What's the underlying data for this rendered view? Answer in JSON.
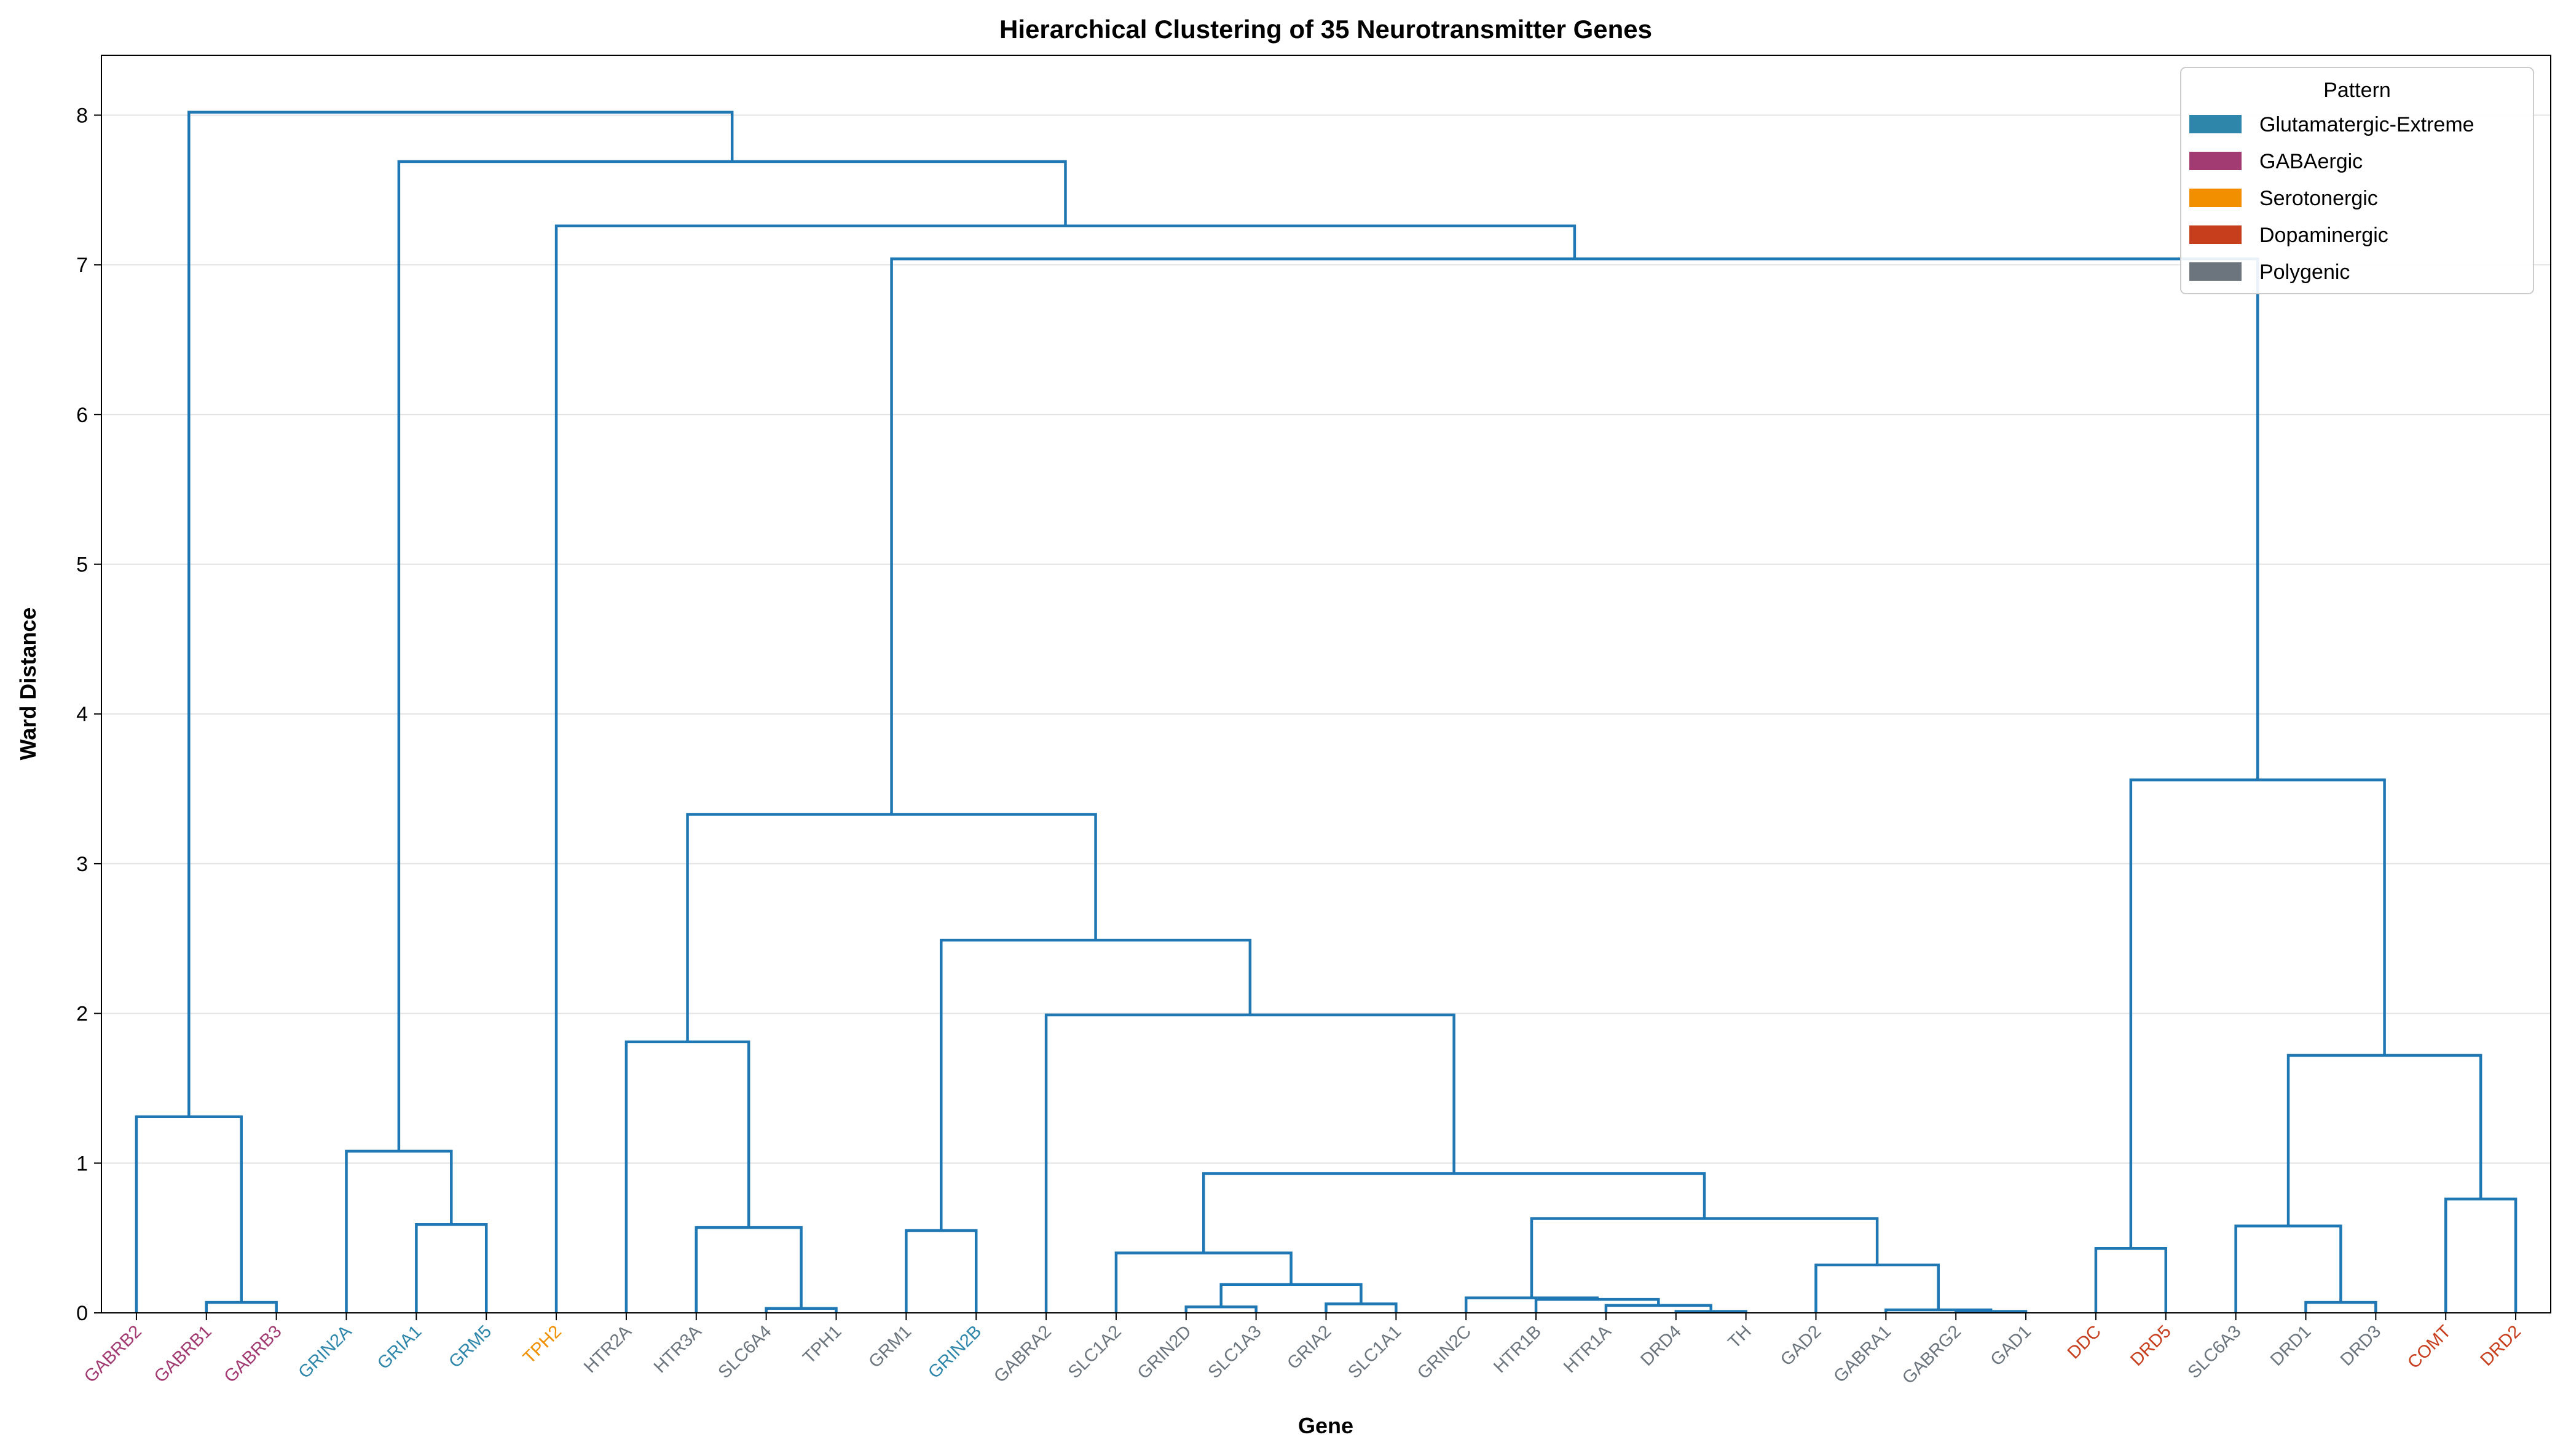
{
  "chart_data": {
    "type": "dendrogram",
    "title": "Hierarchical Clustering of 35 Neurotransmitter Genes",
    "xlabel": "Gene",
    "ylabel": "Ward Distance",
    "ylim": [
      0,
      8.4
    ],
    "yticks": [
      0,
      1,
      2,
      3,
      4,
      5,
      6,
      7,
      8
    ],
    "grid": "horizontal",
    "link_color": "#1f77b4",
    "legend": {
      "title": "Pattern",
      "placement": "top-right",
      "entries": [
        {
          "label": "Glutamatergic-Extreme",
          "color": "#2E86AB"
        },
        {
          "label": "GABAergic",
          "color": "#A23B72"
        },
        {
          "label": "Serotonergic",
          "color": "#F18F01"
        },
        {
          "label": "Dopaminergic",
          "color": "#C73E1D"
        },
        {
          "label": "Polygenic",
          "color": "#6C757D"
        }
      ]
    },
    "leaves": [
      {
        "label": "GABRB2",
        "pattern": "GABAergic"
      },
      {
        "label": "GABRB1",
        "pattern": "GABAergic"
      },
      {
        "label": "GABRB3",
        "pattern": "GABAergic"
      },
      {
        "label": "GRIN2A",
        "pattern": "Glutamatergic-Extreme"
      },
      {
        "label": "GRIA1",
        "pattern": "Glutamatergic-Extreme"
      },
      {
        "label": "GRM5",
        "pattern": "Glutamatergic-Extreme"
      },
      {
        "label": "TPH2",
        "pattern": "Serotonergic"
      },
      {
        "label": "HTR2A",
        "pattern": "Polygenic"
      },
      {
        "label": "HTR3A",
        "pattern": "Polygenic"
      },
      {
        "label": "SLC6A4",
        "pattern": "Polygenic"
      },
      {
        "label": "TPH1",
        "pattern": "Polygenic"
      },
      {
        "label": "GRM1",
        "pattern": "Polygenic"
      },
      {
        "label": "GRIN2B",
        "pattern": "Glutamatergic-Extreme"
      },
      {
        "label": "GABRA2",
        "pattern": "Polygenic"
      },
      {
        "label": "SLC1A2",
        "pattern": "Polygenic"
      },
      {
        "label": "GRIN2D",
        "pattern": "Polygenic"
      },
      {
        "label": "SLC1A3",
        "pattern": "Polygenic"
      },
      {
        "label": "GRIA2",
        "pattern": "Polygenic"
      },
      {
        "label": "SLC1A1",
        "pattern": "Polygenic"
      },
      {
        "label": "GRIN2C",
        "pattern": "Polygenic"
      },
      {
        "label": "HTR1B",
        "pattern": "Polygenic"
      },
      {
        "label": "HTR1A",
        "pattern": "Polygenic"
      },
      {
        "label": "DRD4",
        "pattern": "Polygenic"
      },
      {
        "label": "TH",
        "pattern": "Polygenic"
      },
      {
        "label": "GAD2",
        "pattern": "Polygenic"
      },
      {
        "label": "GABRA1",
        "pattern": "Polygenic"
      },
      {
        "label": "GABRG2",
        "pattern": "Polygenic"
      },
      {
        "label": "GAD1",
        "pattern": "Polygenic"
      },
      {
        "label": "DDC",
        "pattern": "Dopaminergic"
      },
      {
        "label": "DRD5",
        "pattern": "Dopaminergic"
      },
      {
        "label": "SLC6A3",
        "pattern": "Polygenic"
      },
      {
        "label": "DRD1",
        "pattern": "Polygenic"
      },
      {
        "label": "DRD3",
        "pattern": "Polygenic"
      },
      {
        "label": "COMT",
        "pattern": "Dopaminergic"
      },
      {
        "label": "DRD2",
        "pattern": "Dopaminergic"
      }
    ],
    "merges": [
      {
        "a": "L1",
        "b": "L2",
        "height": 0.07
      },
      {
        "a": "L0",
        "b": "M0",
        "height": 1.31
      },
      {
        "a": "L4",
        "b": "L5",
        "height": 0.59
      },
      {
        "a": "L3",
        "b": "M2",
        "height": 1.08
      },
      {
        "a": "L9",
        "b": "L10",
        "height": 0.03
      },
      {
        "a": "L8",
        "b": "M4",
        "height": 0.57
      },
      {
        "a": "L7",
        "b": "M5",
        "height": 1.81
      },
      {
        "a": "L11",
        "b": "L12",
        "height": 0.55
      },
      {
        "a": "L15",
        "b": "L16",
        "height": 0.04
      },
      {
        "a": "L17",
        "b": "L18",
        "height": 0.06
      },
      {
        "a": "M8",
        "b": "M9",
        "height": 0.19
      },
      {
        "a": "L14",
        "b": "M10",
        "height": 0.4
      },
      {
        "a": "L22",
        "b": "L23",
        "height": 0.01
      },
      {
        "a": "L21",
        "b": "M12",
        "height": 0.05
      },
      {
        "a": "L20",
        "b": "M13",
        "height": 0.09
      },
      {
        "a": "L19",
        "b": "M14",
        "height": 0.1
      },
      {
        "a": "L26",
        "b": "L27",
        "height": 0.01
      },
      {
        "a": "L25",
        "b": "M16",
        "height": 0.02
      },
      {
        "a": "L24",
        "b": "M17",
        "height": 0.32
      },
      {
        "a": "M15",
        "b": "M18",
        "height": 0.63
      },
      {
        "a": "M11",
        "b": "M19",
        "height": 0.93
      },
      {
        "a": "L13",
        "b": "M20",
        "height": 1.99
      },
      {
        "a": "M7",
        "b": "M21",
        "height": 2.49
      },
      {
        "a": "M6",
        "b": "M22",
        "height": 3.33
      },
      {
        "a": "L28",
        "b": "L29",
        "height": 0.43
      },
      {
        "a": "L31",
        "b": "L32",
        "height": 0.07
      },
      {
        "a": "L30",
        "b": "M25",
        "height": 0.58
      },
      {
        "a": "L33",
        "b": "L34",
        "height": 0.76
      },
      {
        "a": "M26",
        "b": "M27",
        "height": 1.72
      },
      {
        "a": "M24",
        "b": "M28",
        "height": 3.56
      },
      {
        "a": "M23",
        "b": "M29",
        "height": 7.04
      },
      {
        "a": "L6",
        "b": "M30",
        "height": 7.26
      },
      {
        "a": "M3",
        "b": "M31",
        "height": 7.69
      },
      {
        "a": "M1",
        "b": "M32",
        "height": 8.02
      }
    ]
  }
}
